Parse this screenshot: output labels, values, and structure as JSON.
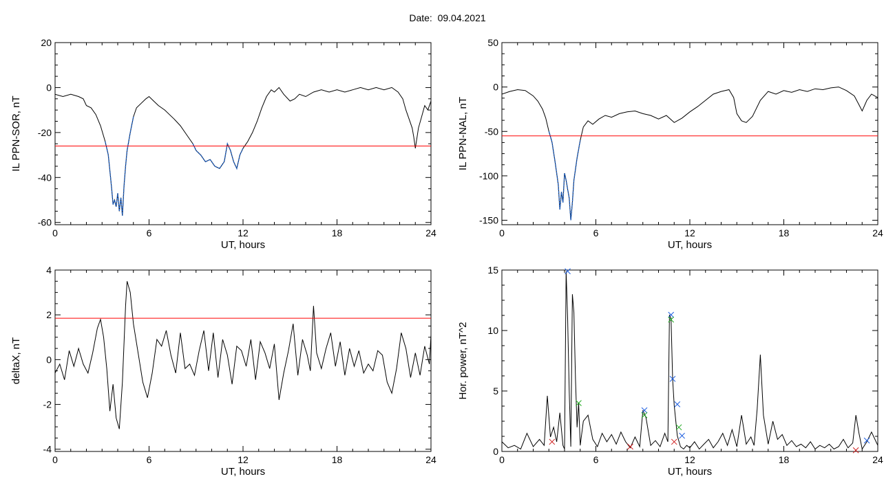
{
  "header": {
    "date_label": "Date:",
    "date_value": "09.04.2021"
  },
  "colors": {
    "trace": "#000000",
    "threshold": "#ff0000",
    "highlight": "#1f5fbf",
    "marker_blue": "#2060e0",
    "marker_green": "#22aa22",
    "marker_red": "#d02020"
  },
  "chart_data": [
    {
      "id": "p1",
      "type": "line",
      "xlabel": "UT, hours",
      "ylabel": "IL PPN-SOR, nT",
      "xlim": [
        0,
        24
      ],
      "ylim": [
        -61,
        20
      ],
      "xticks": [
        0,
        6,
        12,
        18,
        24
      ],
      "yticks": [
        20,
        0,
        -20,
        -40,
        -60
      ],
      "threshold": -26,
      "series": [
        {
          "x": [
            0,
            0.5,
            1,
            1.5,
            1.8,
            2.0,
            2.3,
            2.6,
            2.9,
            3.2,
            3.4,
            3.5,
            3.6,
            3.7,
            3.8,
            3.9,
            4.0,
            4.1,
            4.2,
            4.3,
            4.4,
            4.5,
            4.6,
            4.8,
            5.0,
            5.2,
            5.5,
            5.8,
            6.0,
            6.3,
            6.6,
            7.0,
            7.3,
            7.6,
            8.0,
            8.4,
            8.8,
            9.0,
            9.3,
            9.6,
            9.9,
            10.2,
            10.5,
            10.8,
            11.0,
            11.2,
            11.4,
            11.6,
            11.8,
            12.0,
            12.3,
            12.6,
            12.9,
            13.2,
            13.5,
            13.8,
            14.0,
            14.3,
            14.6,
            15.0,
            15.3,
            15.6,
            16.0,
            16.5,
            17.0,
            17.5,
            18.0,
            18.5,
            19.0,
            19.5,
            20.0,
            20.5,
            21.0,
            21.5,
            21.9,
            22.2,
            22.4,
            22.6,
            22.8,
            22.9,
            23.0,
            23.2,
            23.4,
            23.6,
            23.8,
            24.0
          ],
          "y": [
            -3,
            -4,
            -3,
            -4,
            -5,
            -8,
            -9,
            -12,
            -17,
            -24,
            -30,
            -37,
            -44,
            -52,
            -50,
            -53,
            -47,
            -55,
            -49,
            -57,
            -44,
            -35,
            -28,
            -20,
            -13,
            -9,
            -7,
            -5,
            -4,
            -6,
            -8,
            -10,
            -12,
            -14,
            -17,
            -21,
            -25,
            -28,
            -30,
            -33,
            -32,
            -35,
            -36,
            -33,
            -25,
            -28,
            -33,
            -36,
            -30,
            -27,
            -24,
            -20,
            -15,
            -9,
            -4,
            -1,
            -2,
            0,
            -3,
            -6,
            -5,
            -3,
            -4,
            -2,
            -1,
            -2,
            -1,
            -2,
            -1,
            0,
            -1,
            0,
            -1,
            0,
            -2,
            -5,
            -10,
            -14,
            -18,
            -22,
            -27,
            -18,
            -13,
            -8,
            -10,
            -6
          ]
        }
      ],
      "highlight_segments": [
        [
          3.2,
          5.0
        ],
        [
          8.7,
          12.0
        ]
      ]
    },
    {
      "id": "p2",
      "type": "line",
      "xlabel": "UT, hours",
      "ylabel": "IL PPN-NAL, nT",
      "xlim": [
        0,
        24
      ],
      "ylim": [
        -155,
        50
      ],
      "xticks": [
        0,
        6,
        12,
        18,
        24
      ],
      "yticks": [
        50,
        0,
        -50,
        -100,
        -150
      ],
      "threshold": -55,
      "series": [
        {
          "x": [
            0,
            0.5,
            1,
            1.5,
            2.0,
            2.3,
            2.6,
            2.8,
            3.0,
            3.2,
            3.4,
            3.6,
            3.7,
            3.8,
            3.9,
            4.0,
            4.1,
            4.2,
            4.3,
            4.4,
            4.5,
            4.6,
            4.8,
            5.0,
            5.2,
            5.5,
            5.8,
            6.2,
            6.6,
            7.0,
            7.5,
            8.0,
            8.5,
            9.0,
            9.5,
            10.0,
            10.5,
            11.0,
            11.5,
            12.0,
            12.5,
            13.0,
            13.5,
            14.0,
            14.5,
            14.8,
            15.0,
            15.3,
            15.6,
            16.0,
            16.5,
            17.0,
            17.5,
            18.0,
            18.5,
            19.0,
            19.5,
            20.0,
            20.5,
            21.0,
            21.5,
            22.0,
            22.5,
            22.8,
            23.0,
            23.3,
            23.6,
            24.0
          ],
          "y": [
            -8,
            -5,
            -3,
            -4,
            -10,
            -16,
            -25,
            -35,
            -50,
            -62,
            -85,
            -110,
            -138,
            -118,
            -130,
            -97,
            -105,
            -115,
            -125,
            -150,
            -130,
            -105,
            -80,
            -60,
            -45,
            -38,
            -42,
            -36,
            -32,
            -34,
            -30,
            -28,
            -27,
            -30,
            -32,
            -36,
            -32,
            -40,
            -35,
            -28,
            -22,
            -15,
            -8,
            -5,
            -3,
            -12,
            -30,
            -38,
            -40,
            -33,
            -15,
            -5,
            -8,
            -4,
            -6,
            -3,
            -5,
            -2,
            -3,
            -1,
            0,
            -4,
            -10,
            -20,
            -27,
            -15,
            -8,
            -12
          ]
        }
      ],
      "highlight_segments": [
        [
          2.9,
          5.1
        ]
      ]
    },
    {
      "id": "p3",
      "type": "line",
      "xlabel": "UT, hours",
      "ylabel": "deltaX, nT",
      "xlim": [
        0,
        24
      ],
      "ylim": [
        -4.1,
        4
      ],
      "xticks": [
        0,
        6,
        12,
        18,
        24
      ],
      "yticks": [
        4,
        2,
        0,
        -2,
        -4
      ],
      "threshold": 1.85,
      "series": [
        {
          "x": [
            0,
            0.3,
            0.6,
            0.9,
            1.2,
            1.5,
            1.8,
            2.1,
            2.4,
            2.7,
            2.9,
            3.1,
            3.3,
            3.5,
            3.7,
            3.9,
            4.1,
            4.3,
            4.5,
            4.6,
            4.8,
            5.0,
            5.3,
            5.6,
            5.9,
            6.2,
            6.5,
            6.8,
            7.1,
            7.4,
            7.7,
            8.0,
            8.3,
            8.6,
            8.9,
            9.2,
            9.5,
            9.8,
            10.1,
            10.4,
            10.7,
            11.0,
            11.3,
            11.6,
            11.9,
            12.2,
            12.5,
            12.8,
            13.1,
            13.4,
            13.7,
            14.0,
            14.3,
            14.6,
            14.9,
            15.2,
            15.5,
            15.8,
            16.1,
            16.3,
            16.5,
            16.7,
            17.0,
            17.3,
            17.6,
            17.9,
            18.2,
            18.5,
            18.8,
            19.1,
            19.4,
            19.7,
            20.0,
            20.3,
            20.6,
            20.9,
            21.2,
            21.5,
            21.8,
            22.1,
            22.4,
            22.7,
            23.0,
            23.3,
            23.6,
            23.9,
            24.0
          ],
          "y": [
            -0.6,
            -0.2,
            -0.9,
            0.4,
            -0.3,
            0.5,
            -0.2,
            -0.6,
            0.3,
            1.4,
            1.8,
            1.0,
            -0.4,
            -2.3,
            -1.1,
            -2.6,
            -3.1,
            -1.0,
            2.4,
            3.5,
            3.0,
            1.6,
            0.3,
            -1.0,
            -1.7,
            -0.6,
            0.9,
            0.6,
            1.3,
            0.2,
            -0.6,
            1.2,
            -0.4,
            -0.2,
            -0.7,
            0.4,
            1.3,
            -0.5,
            1.2,
            -0.8,
            0.9,
            0.2,
            -1.1,
            0.6,
            0.4,
            -0.3,
            0.9,
            -0.9,
            0.8,
            0.3,
            -0.4,
            0.7,
            -1.8,
            -0.6,
            0.4,
            1.6,
            -0.7,
            0.9,
            0.2,
            -0.5,
            2.4,
            0.3,
            -0.4,
            0.5,
            1.2,
            -0.3,
            0.8,
            -0.7,
            0.5,
            -0.3,
            0.4,
            -0.6,
            -0.2,
            -0.5,
            0.4,
            0.2,
            -1.0,
            -1.5,
            -0.4,
            1.2,
            0.5,
            -0.8,
            0.3,
            -0.7,
            0.6,
            -0.2,
            1.1
          ]
        }
      ]
    },
    {
      "id": "p4",
      "type": "line",
      "xlabel": "UT, hours",
      "ylabel": "Hor. power, nT^2",
      "xlim": [
        0,
        24
      ],
      "ylim": [
        0,
        15
      ],
      "xticks": [
        0,
        6,
        12,
        18,
        24
      ],
      "yticks": [
        15,
        10,
        5,
        0
      ],
      "series": [
        {
          "x": [
            0,
            0.4,
            0.8,
            1.2,
            1.6,
            2.0,
            2.4,
            2.7,
            2.9,
            3.1,
            3.3,
            3.5,
            3.7,
            3.9,
            4.0,
            4.1,
            4.2,
            4.3,
            4.4,
            4.5,
            4.6,
            4.7,
            4.8,
            4.9,
            5.0,
            5.2,
            5.5,
            5.8,
            6.1,
            6.4,
            6.7,
            7.0,
            7.3,
            7.6,
            7.9,
            8.2,
            8.5,
            8.8,
            9.0,
            9.2,
            9.5,
            9.8,
            10.1,
            10.4,
            10.6,
            10.7,
            10.8,
            10.9,
            11.0,
            11.2,
            11.4,
            11.6,
            11.8,
            12.0,
            12.3,
            12.6,
            12.9,
            13.2,
            13.5,
            13.8,
            14.1,
            14.4,
            14.7,
            15.0,
            15.3,
            15.6,
            15.9,
            16.1,
            16.3,
            16.5,
            16.7,
            17.0,
            17.3,
            17.6,
            17.9,
            18.2,
            18.5,
            18.8,
            19.1,
            19.4,
            19.7,
            20.0,
            20.3,
            20.6,
            20.9,
            21.2,
            21.5,
            21.8,
            22.1,
            22.4,
            22.6,
            22.8,
            23.0,
            23.3,
            23.6,
            24.0
          ],
          "y": [
            0.8,
            0.3,
            0.5,
            0.2,
            1.5,
            0.4,
            1.0,
            0.5,
            4.6,
            1.2,
            2.0,
            0.8,
            3.2,
            0.5,
            0.2,
            14.9,
            11.0,
            5.0,
            0.4,
            13.0,
            11.5,
            6.0,
            2.0,
            4.0,
            0.5,
            2.5,
            3.0,
            1.0,
            0.4,
            1.5,
            0.8,
            1.4,
            0.6,
            1.6,
            0.8,
            0.3,
            1.2,
            0.4,
            3.4,
            2.8,
            0.5,
            0.9,
            0.4,
            1.5,
            0.8,
            11.3,
            11.0,
            6.0,
            3.8,
            1.3,
            0.4,
            0.2,
            0.5,
            0.3,
            0.8,
            0.2,
            0.6,
            1.0,
            0.3,
            0.8,
            1.5,
            0.5,
            1.8,
            0.4,
            3.0,
            0.6,
            1.2,
            0.5,
            3.5,
            8.0,
            3.0,
            0.6,
            2.5,
            1.0,
            1.4,
            0.5,
            0.9,
            0.4,
            0.6,
            0.3,
            0.8,
            0.2,
            0.5,
            0.3,
            0.6,
            0.2,
            0.4,
            1.0,
            0.3,
            0.7,
            3.0,
            1.5,
            0.2,
            0.8,
            1.6,
            0.5
          ]
        }
      ],
      "markers": [
        {
          "x": 4.2,
          "y": 14.9,
          "color": "marker_blue"
        },
        {
          "x": 4.9,
          "y": 4.0,
          "color": "marker_green"
        },
        {
          "x": 9.1,
          "y": 3.4,
          "color": "marker_blue"
        },
        {
          "x": 9.1,
          "y": 3.0,
          "color": "marker_green"
        },
        {
          "x": 10.8,
          "y": 11.3,
          "color": "marker_blue"
        },
        {
          "x": 10.8,
          "y": 10.9,
          "color": "marker_green"
        },
        {
          "x": 10.9,
          "y": 6.0,
          "color": "marker_blue"
        },
        {
          "x": 11.2,
          "y": 3.9,
          "color": "marker_blue"
        },
        {
          "x": 11.3,
          "y": 2.0,
          "color": "marker_green"
        },
        {
          "x": 11.5,
          "y": 1.3,
          "color": "marker_blue"
        },
        {
          "x": 3.2,
          "y": 0.8,
          "color": "marker_red"
        },
        {
          "x": 8.2,
          "y": 0.4,
          "color": "marker_red"
        },
        {
          "x": 11.0,
          "y": 0.8,
          "color": "marker_red"
        },
        {
          "x": 22.6,
          "y": 0.1,
          "color": "marker_red"
        },
        {
          "x": 23.3,
          "y": 0.9,
          "color": "marker_blue"
        }
      ]
    }
  ]
}
